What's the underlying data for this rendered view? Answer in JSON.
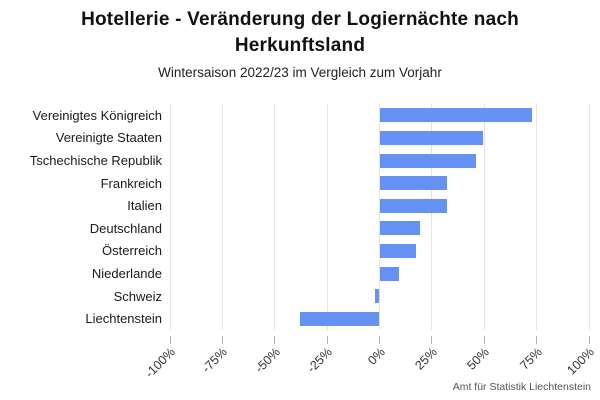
{
  "chart_data": {
    "type": "bar",
    "orientation": "horizontal",
    "title": "Hotellerie - Veränderung der Logiernächte nach Herkunftsland",
    "subtitle": "Wintersaison 2022/23 im Vergleich zum Vorjahr",
    "credit": "Amt für Statistik Liechtenstein",
    "categories": [
      "Vereinigtes Königreich",
      "Vereinigte Staaten",
      "Tschechische Republik",
      "Frankreich",
      "Italien",
      "Deutschland",
      "Österreich",
      "Niederlande",
      "Schweiz",
      "Liechtenstein"
    ],
    "values": [
      73,
      49.5,
      46,
      32,
      32,
      19.5,
      17.5,
      9.5,
      -2,
      -38
    ],
    "unit": "%",
    "xlabel": "",
    "ylabel": "",
    "xlim": [
      -100,
      100
    ],
    "xticks": [
      -100,
      -75,
      -50,
      -25,
      0,
      25,
      50,
      75,
      100
    ],
    "tick_suffix": "%",
    "grid": true,
    "legend": false,
    "bar_color": "#6590F4",
    "gridline_color": "#e2e2e2",
    "tickmark_color": "#b0b0b0"
  }
}
